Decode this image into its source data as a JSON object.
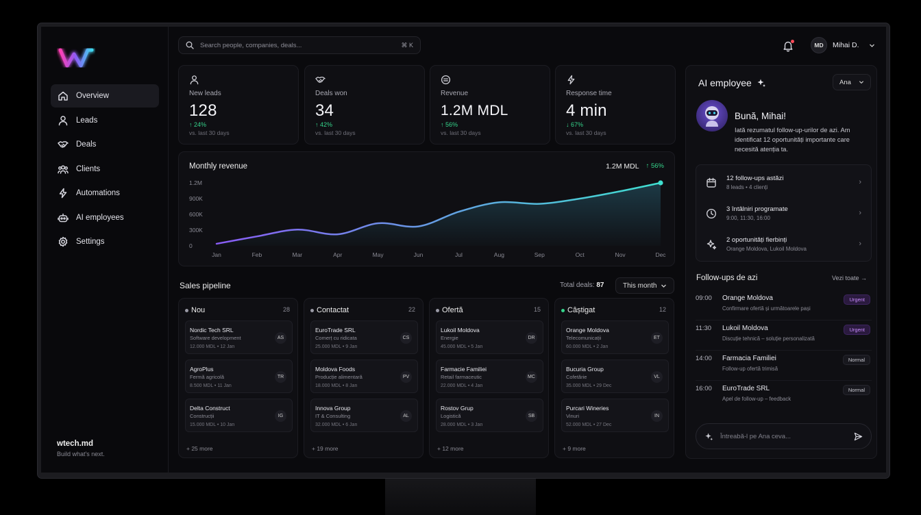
{
  "search": {
    "placeholder": "Search people, companies, deals...",
    "shortcut": "⌘ K"
  },
  "user": {
    "initials": "MD",
    "name": "Mihai D."
  },
  "nav": [
    {
      "label": "Overview",
      "icon": "home-icon"
    },
    {
      "label": "Leads",
      "icon": "user-icon"
    },
    {
      "label": "Deals",
      "icon": "handshake-icon"
    },
    {
      "label": "Clients",
      "icon": "users-icon"
    },
    {
      "label": "Automations",
      "icon": "bolt-icon"
    },
    {
      "label": "AI employees",
      "icon": "robot-icon"
    },
    {
      "label": "Settings",
      "icon": "gear-icon"
    }
  ],
  "brand": {
    "name": "wtech.md",
    "tagline": "Build what's next."
  },
  "kpis": [
    {
      "label": "New leads",
      "value": "128",
      "change": "↑ 24%",
      "sub": "vs. last 30 days",
      "icon": "user-icon"
    },
    {
      "label": "Deals won",
      "value": "34",
      "change": "↑ 42%",
      "sub": "vs. last 30 days",
      "icon": "handshake-icon"
    },
    {
      "label": "Revenue",
      "value": "1.2M MDL",
      "change": "↑ 56%",
      "sub": "vs. last 30 days",
      "icon": "coin-icon"
    },
    {
      "label": "Response time",
      "value": "4 min",
      "change": "↓ 67%",
      "sub": "vs. last 30 days",
      "icon": "bolt-icon"
    }
  ],
  "revenue": {
    "title": "Monthly revenue",
    "total": "1.2M MDL",
    "change": "↑ 56%"
  },
  "chart_data": {
    "type": "area",
    "title": "Monthly revenue",
    "categories": [
      "Jan",
      "Feb",
      "Mar",
      "Apr",
      "May",
      "Jun",
      "Jul",
      "Aug",
      "Sep",
      "Oct",
      "Nov",
      "Dec"
    ],
    "values": [
      40,
      180,
      310,
      220,
      430,
      370,
      650,
      830,
      800,
      900,
      1040,
      1200
    ],
    "y_ticks": [
      "0",
      "300K",
      "600K",
      "900K",
      "1.2M"
    ],
    "ylim": [
      0,
      1200
    ],
    "grid": false,
    "colors": {
      "start": "#8a5cf6",
      "end": "#3fe0d0"
    }
  },
  "pipeline": {
    "title": "Sales pipeline",
    "total_label": "Total deals:",
    "total_value": "87",
    "period": "This month",
    "columns": [
      {
        "name": "Nou",
        "count": "28",
        "dot": "#9a9aa6",
        "more": "+ 25 more",
        "deals": [
          {
            "name": "Nordic Tech SRL",
            "cat": "Software development",
            "meta": "12.000 MDL  •  12 Jan",
            "initials": "AS"
          },
          {
            "name": "AgroPlus",
            "cat": "Fermă agricolă",
            "meta": "8.500 MDL  •  11 Jan",
            "initials": "TR"
          },
          {
            "name": "Delta Construct",
            "cat": "Construcții",
            "meta": "15.000 MDL  •  10 Jan",
            "initials": "IG"
          }
        ]
      },
      {
        "name": "Contactat",
        "count": "22",
        "dot": "#9a9aa6",
        "more": "+ 19 more",
        "deals": [
          {
            "name": "EuroTrade SRL",
            "cat": "Comerț cu ridicata",
            "meta": "25.000 MDL  •  9 Jan",
            "initials": "CS"
          },
          {
            "name": "Moldova Foods",
            "cat": "Producție alimentară",
            "meta": "18.000 MDL  •  8 Jan",
            "initials": "PV"
          },
          {
            "name": "Innova Group",
            "cat": "IT & Consulting",
            "meta": "32.000 MDL  •  6 Jan",
            "initials": "AL"
          }
        ]
      },
      {
        "name": "Ofertă",
        "count": "15",
        "dot": "#9a9aa6",
        "more": "+ 12 more",
        "deals": [
          {
            "name": "Lukoil Moldova",
            "cat": "Energie",
            "meta": "45.000 MDL  •  5 Jan",
            "initials": "DR"
          },
          {
            "name": "Farmacie Familiei",
            "cat": "Retail farmaceutic",
            "meta": "22.000 MDL  •  4 Jan",
            "initials": "MC"
          },
          {
            "name": "Rostov Grup",
            "cat": "Logistică",
            "meta": "28.000 MDL  •  3 Jan",
            "initials": "SB"
          }
        ]
      },
      {
        "name": "Câștigat",
        "count": "12",
        "dot": "#35d48b",
        "more": "+ 9 more",
        "deals": [
          {
            "name": "Orange Moldova",
            "cat": "Telecomunicații",
            "meta": "60.000 MDL  •  2 Jan",
            "initials": "ET"
          },
          {
            "name": "Bucuria Group",
            "cat": "Cofetărie",
            "meta": "35.000 MDL  •  29 Dec",
            "initials": "VL"
          },
          {
            "name": "Purcari Wineries",
            "cat": "Vinuri",
            "meta": "52.000 MDL  •  27 Dec",
            "initials": "IN"
          }
        ]
      }
    ]
  },
  "ai": {
    "title": "AI employee",
    "agent": "Ana",
    "greeting": "Bună, Mihai!",
    "intro": "Iată rezumatul follow-up-urilor de azi. Am identificat 12 oportunități importante care necesită atenția ta.",
    "summary": [
      {
        "title": "12 follow-ups astăzi",
        "sub": "8 leads  •  4 clienți",
        "icon": "calendar-icon"
      },
      {
        "title": "3 întâlniri programate",
        "sub": "9:00, 11:30, 16:00",
        "icon": "clock-icon"
      },
      {
        "title": "2 oportunități fierbinți",
        "sub": "Orange Moldova, Lukoil Moldova",
        "icon": "sparkle-icon"
      }
    ],
    "followups_title": "Follow-ups de azi",
    "view_all": "Vezi toate →",
    "followups": [
      {
        "time": "09:00",
        "name": "Orange Moldova",
        "desc": "Confirmare ofertă și următoarele pași",
        "tag": "Urgent"
      },
      {
        "time": "11:30",
        "name": "Lukoil Moldova",
        "desc": "Discuție tehnică – soluție personalizată",
        "tag": "Urgent"
      },
      {
        "time": "14:00",
        "name": "Farmacia Familiei",
        "desc": "Follow-up ofertă trimisă",
        "tag": "Normal"
      },
      {
        "time": "16:00",
        "name": "EuroTrade SRL",
        "desc": "Apel de follow-up – feedback",
        "tag": "Normal"
      }
    ],
    "ask_placeholder": "Întreabă-l pe Ana ceva..."
  }
}
